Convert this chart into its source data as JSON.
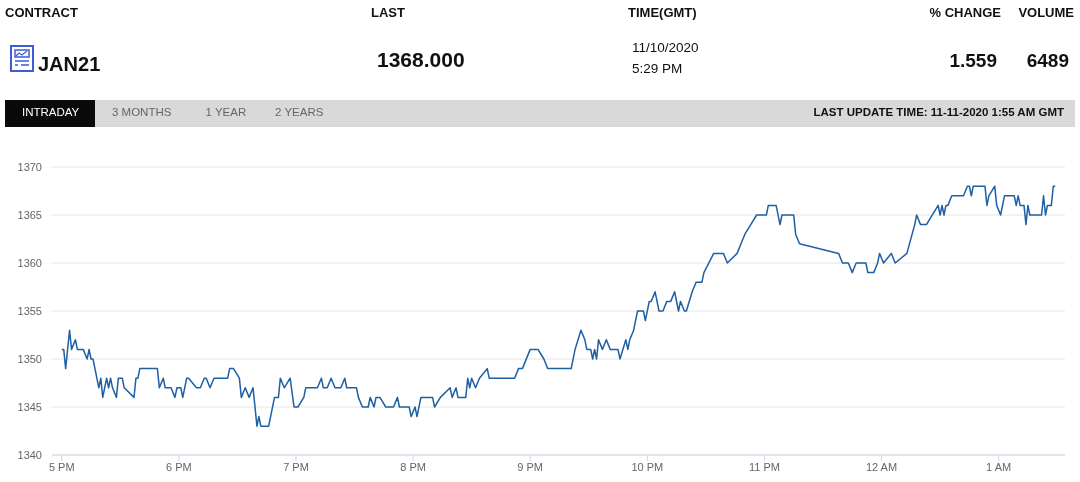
{
  "chart_data": {
    "type": "line",
    "annotations": [
      "CONTRACT",
      "LAST",
      "TIME(GMT)",
      "% CHANGE",
      "VOLUME",
      "JAN21",
      "1368.000",
      "11/10/2020",
      "5:29 PM",
      "1.559",
      "6489",
      "INTRADAY",
      "3 MONTHS",
      "1 YEAR",
      "2 YEARS",
      "LAST UPDATE TIME: 11-11-2020 1:55 AM GMT"
    ],
    "x": [
      "2020-11-10T17:00",
      "2020-11-10T17:01",
      "2020-11-10T17:02",
      "2020-11-10T17:04",
      "2020-11-10T17:05",
      "2020-11-10T17:07",
      "2020-11-10T17:08",
      "2020-11-10T17:11",
      "2020-11-10T17:13",
      "2020-11-10T17:14",
      "2020-11-10T17:15",
      "2020-11-10T17:16",
      "2020-11-10T17:17",
      "2020-11-10T17:19",
      "2020-11-10T17:20",
      "2020-11-10T17:21",
      "2020-11-10T17:23",
      "2020-11-10T17:24",
      "2020-11-10T17:25",
      "2020-11-10T17:26",
      "2020-11-10T17:28",
      "2020-11-10T17:29",
      "2020-11-10T17:31",
      "2020-11-10T17:32",
      "2020-11-10T17:37",
      "2020-11-10T17:38",
      "2020-11-10T17:39",
      "2020-11-10T17:40",
      "2020-11-10T17:49",
      "2020-11-10T17:50",
      "2020-11-10T17:52",
      "2020-11-10T17:53",
      "2020-11-10T17:56",
      "2020-11-10T17:58",
      "2020-11-10T17:59",
      "2020-11-10T18:01",
      "2020-11-10T18:02",
      "2020-11-10T18:04",
      "2020-11-10T18:05",
      "2020-11-10T18:09",
      "2020-11-10T18:11",
      "2020-11-10T18:13",
      "2020-11-10T18:14",
      "2020-11-10T18:16",
      "2020-11-10T18:18",
      "2020-11-10T18:25",
      "2020-11-10T18:26",
      "2020-11-10T18:28",
      "2020-11-10T18:31",
      "2020-11-10T18:32",
      "2020-11-10T18:34",
      "2020-11-10T18:36",
      "2020-11-10T18:38",
      "2020-11-10T18:40",
      "2020-11-10T18:41",
      "2020-11-10T18:42",
      "2020-11-10T18:46",
      "2020-11-10T18:49",
      "2020-11-10T18:51",
      "2020-11-10T18:52",
      "2020-11-10T18:54",
      "2020-11-10T18:57",
      "2020-11-10T18:59",
      "2020-11-10T19:01",
      "2020-11-10T19:04",
      "2020-11-10T19:05",
      "2020-11-10T19:11",
      "2020-11-10T19:13",
      "2020-11-10T19:14",
      "2020-11-10T19:16",
      "2020-11-10T19:18",
      "2020-11-10T19:20",
      "2020-11-10T19:23",
      "2020-11-10T19:25",
      "2020-11-10T19:26",
      "2020-11-10T19:31",
      "2020-11-10T19:32",
      "2020-11-10T19:34",
      "2020-11-10T19:37",
      "2020-11-10T19:38",
      "2020-11-10T19:40",
      "2020-11-10T19:41",
      "2020-11-10T19:43",
      "2020-11-10T19:46",
      "2020-11-10T19:50",
      "2020-11-10T19:52",
      "2020-11-10T19:53",
      "2020-11-10T19:58",
      "2020-11-10T19:59",
      "2020-11-10T20:01",
      "2020-11-10T20:02",
      "2020-11-10T20:04",
      "2020-11-10T20:10",
      "2020-11-10T20:11",
      "2020-11-10T20:14",
      "2020-11-10T20:19",
      "2020-11-10T20:20",
      "2020-11-10T20:22",
      "2020-11-10T20:23",
      "2020-11-10T20:27",
      "2020-11-10T20:28",
      "2020-11-10T20:29",
      "2020-11-10T20:30",
      "2020-11-10T20:32",
      "2020-11-10T20:34",
      "2020-11-10T20:38",
      "2020-11-10T20:39",
      "2020-11-10T20:52",
      "2020-11-10T20:54",
      "2020-11-10T20:56",
      "2020-11-10T21:00",
      "2020-11-10T21:04",
      "2020-11-10T21:07",
      "2020-11-10T21:09",
      "2020-11-10T21:21",
      "2020-11-10T21:23",
      "2020-11-10T21:26",
      "2020-11-10T21:28",
      "2020-11-10T21:29",
      "2020-11-10T21:31",
      "2020-11-10T21:32",
      "2020-11-10T21:33",
      "2020-11-10T21:34",
      "2020-11-10T21:35",
      "2020-11-10T21:37",
      "2020-11-10T21:39",
      "2020-11-10T21:41",
      "2020-11-10T21:45",
      "2020-11-10T21:46",
      "2020-11-10T21:49",
      "2020-11-10T21:50",
      "2020-11-10T21:51",
      "2020-11-10T21:53",
      "2020-11-10T21:55",
      "2020-11-10T21:58",
      "2020-11-10T21:59",
      "2020-11-10T22:01",
      "2020-11-10T22:02",
      "2020-11-10T22:04",
      "2020-11-10T22:06",
      "2020-11-10T22:08",
      "2020-11-10T22:10",
      "2020-11-10T22:12",
      "2020-11-10T22:14",
      "2020-11-10T22:16",
      "2020-11-10T22:17",
      "2020-11-10T22:19",
      "2020-11-10T22:20",
      "2020-11-10T22:23",
      "2020-11-10T22:25",
      "2020-11-10T22:28",
      "2020-11-10T22:29",
      "2020-11-10T22:34",
      "2020-11-10T22:39",
      "2020-11-10T22:41",
      "2020-11-10T22:46",
      "2020-11-10T22:48",
      "2020-11-10T22:50",
      "2020-11-10T22:53",
      "2020-11-10T22:56",
      "2020-11-10T23:01",
      "2020-11-10T23:02",
      "2020-11-10T23:06",
      "2020-11-10T23:08",
      "2020-11-10T23:09",
      "2020-11-10T23:15",
      "2020-11-10T23:16",
      "2020-11-10T23:18",
      "2020-11-10T23:38",
      "2020-11-10T23:40",
      "2020-11-10T23:43",
      "2020-11-10T23:45",
      "2020-11-10T23:47",
      "2020-11-10T23:52",
      "2020-11-10T23:53",
      "2020-11-10T23:56",
      "2020-11-10T23:58",
      "2020-11-10T23:59",
      "2020-11-11T00:01",
      "2020-11-11T00:05",
      "2020-11-11T00:07",
      "2020-11-11T00:13",
      "2020-11-11T00:17",
      "2020-11-11T00:18",
      "2020-11-11T00:20",
      "2020-11-11T00:23",
      "2020-11-11T00:29",
      "2020-11-11T00:30",
      "2020-11-11T00:31",
      "2020-11-11T00:32",
      "2020-11-11T00:33",
      "2020-11-11T00:34",
      "2020-11-11T00:36",
      "2020-11-11T00:42",
      "2020-11-11T00:44",
      "2020-11-11T00:45",
      "2020-11-11T00:46",
      "2020-11-11T00:47",
      "2020-11-11T00:53",
      "2020-11-11T00:54",
      "2020-11-11T00:55",
      "2020-11-11T00:58",
      "2020-11-11T00:59",
      "2020-11-11T01:01",
      "2020-11-11T01:03",
      "2020-11-11T01:08",
      "2020-11-11T01:09",
      "2020-11-11T01:10",
      "2020-11-11T01:11",
      "2020-11-11T01:13",
      "2020-11-11T01:14",
      "2020-11-11T01:15",
      "2020-11-11T01:16",
      "2020-11-11T01:22",
      "2020-11-11T01:23",
      "2020-11-11T01:24",
      "2020-11-11T01:25",
      "2020-11-11T01:27",
      "2020-11-11T01:28",
      "2020-11-11T01:29"
    ],
    "values": [
      1351,
      1351,
      1349,
      1353,
      1351,
      1352,
      1351,
      1351,
      1350,
      1351,
      1350,
      1350,
      1349,
      1347,
      1348,
      1346,
      1348,
      1347,
      1348,
      1347,
      1346,
      1348,
      1348,
      1347,
      1346,
      1348,
      1348,
      1349,
      1349,
      1347,
      1348,
      1347,
      1347,
      1346,
      1347,
      1347,
      1346,
      1348,
      1348,
      1347,
      1347,
      1348,
      1348,
      1347,
      1348,
      1348,
      1349,
      1349,
      1348,
      1346,
      1347,
      1346,
      1347,
      1343,
      1344,
      1343,
      1343,
      1346,
      1346,
      1348,
      1347,
      1348,
      1345,
      1345,
      1346,
      1347,
      1347,
      1348,
      1347,
      1347,
      1348,
      1347,
      1347,
      1348,
      1347,
      1347,
      1346,
      1345,
      1345,
      1346,
      1345,
      1346,
      1346,
      1345,
      1345,
      1346,
      1345,
      1345,
      1344,
      1345,
      1344,
      1346,
      1346,
      1345,
      1346,
      1347,
      1346,
      1347,
      1346,
      1346,
      1348,
      1347,
      1348,
      1347,
      1348,
      1349,
      1348,
      1348,
      1349,
      1349,
      1351,
      1351,
      1350,
      1349,
      1349,
      1351,
      1353,
      1352,
      1351,
      1351,
      1350,
      1351,
      1350,
      1352,
      1351,
      1352,
      1351,
      1351,
      1350,
      1352,
      1351,
      1352,
      1353,
      1355,
      1355,
      1354,
      1356,
      1356,
      1357,
      1355,
      1355,
      1356,
      1356,
      1357,
      1355,
      1356,
      1355,
      1355,
      1357,
      1358,
      1358,
      1359,
      1361,
      1361,
      1360,
      1361,
      1362,
      1363,
      1364,
      1365,
      1365,
      1366,
      1366,
      1364,
      1365,
      1365,
      1363,
      1362,
      1361,
      1360,
      1360,
      1359,
      1360,
      1360,
      1359,
      1359,
      1360,
      1361,
      1360,
      1361,
      1360,
      1361,
      1364,
      1365,
      1364,
      1364,
      1366,
      1365,
      1366,
      1365,
      1366,
      1366,
      1367,
      1367,
      1368,
      1368,
      1367,
      1368,
      1368,
      1366,
      1367,
      1368,
      1366,
      1365,
      1367,
      1367,
      1366,
      1367,
      1366,
      1366,
      1364,
      1366,
      1365,
      1365,
      1367,
      1365,
      1366,
      1366,
      1368,
      1368
    ],
    "color": "#1f5fa3",
    "xlim": [
      "2020-11-10T16:55",
      "2020-11-11T01:34"
    ],
    "xticks": [
      {
        "value": "2020-11-10T17:00",
        "label": "5 PM"
      },
      {
        "value": "2020-11-10T18:00",
        "label": "6 PM"
      },
      {
        "value": "2020-11-10T19:00",
        "label": "7 PM"
      },
      {
        "value": "2020-11-10T20:00",
        "label": "8 PM"
      },
      {
        "value": "2020-11-10T21:00",
        "label": "9 PM"
      },
      {
        "value": "2020-11-10T22:00",
        "label": "10 PM"
      },
      {
        "value": "2020-11-10T23:00",
        "label": "11 PM"
      },
      {
        "value": "2020-11-11T00:00",
        "label": "12 AM"
      },
      {
        "value": "2020-11-11T01:00",
        "label": "1 AM"
      }
    ],
    "ylim": [
      1340,
      1370
    ],
    "yticks": [
      1340,
      1345,
      1350,
      1355,
      1360,
      1365,
      1370
    ],
    "grid": "y"
  }
}
